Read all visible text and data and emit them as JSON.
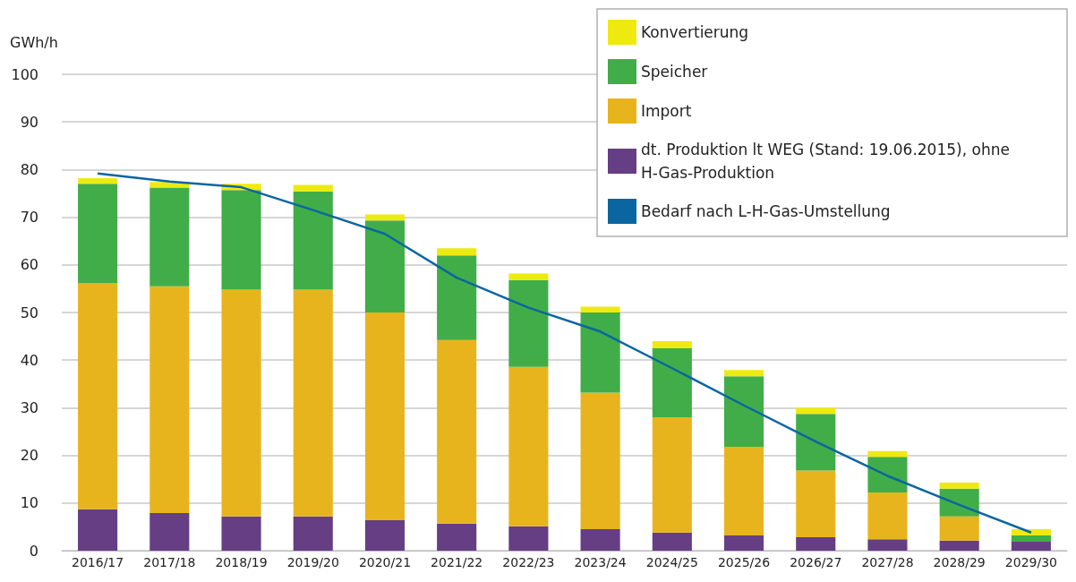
{
  "chart_data": {
    "type": "bar",
    "stacked": true,
    "ylabel": "GWh/h",
    "categories": [
      "2016/17",
      "2017/18",
      "2018/19",
      "2019/20",
      "2020/21",
      "2021/22",
      "2022/23",
      "2023/24",
      "2024/25",
      "2025/26",
      "2026/27",
      "2027/28",
      "2028/29",
      "2029/30"
    ],
    "series": [
      {
        "name": "dt. Produktion lt WEG (Stand: 19.06.2015), ohne H-Gas-Produktion",
        "color": "#653e84",
        "values": [
          8.7,
          7.9,
          7.2,
          7.2,
          6.4,
          5.7,
          5.1,
          4.5,
          3.8,
          3.2,
          2.8,
          2.4,
          2.1,
          1.9
        ]
      },
      {
        "name": "Import",
        "color": "#e8b41e",
        "values": [
          47.5,
          47.6,
          47.6,
          47.6,
          43.6,
          38.5,
          33.5,
          28.7,
          24.2,
          18.6,
          14.0,
          9.8,
          5.1,
          0
        ]
      },
      {
        "name": "Speicher",
        "color": "#41ad49",
        "values": [
          20.8,
          20.7,
          20.9,
          20.6,
          19.3,
          17.8,
          18.2,
          16.8,
          14.5,
          14.8,
          11.9,
          7.5,
          5.8,
          1.3
        ]
      },
      {
        "name": "Konvertierung",
        "color": "#eeea10",
        "values": [
          1.2,
          1.2,
          1.3,
          1.4,
          1.3,
          1.5,
          1.4,
          1.2,
          1.5,
          1.3,
          1.3,
          1.2,
          1.3,
          1.3
        ]
      },
      {
        "name": "Bedarf nach L-H-Gas-Umstellung",
        "type": "line",
        "color": "#0a66a0",
        "values": [
          79.2,
          77.5,
          76.3,
          71.5,
          66.5,
          57.3,
          51,
          46,
          38.3,
          30.5,
          22.9,
          15.7,
          9.6,
          3.8
        ]
      }
    ],
    "ylim": [
      0,
      100
    ],
    "yticks": [
      0,
      10,
      20,
      30,
      40,
      50,
      60,
      70,
      80,
      90,
      100
    ],
    "grid": "y",
    "legend": "top right",
    "marker": "none",
    "line_style": "solid"
  }
}
